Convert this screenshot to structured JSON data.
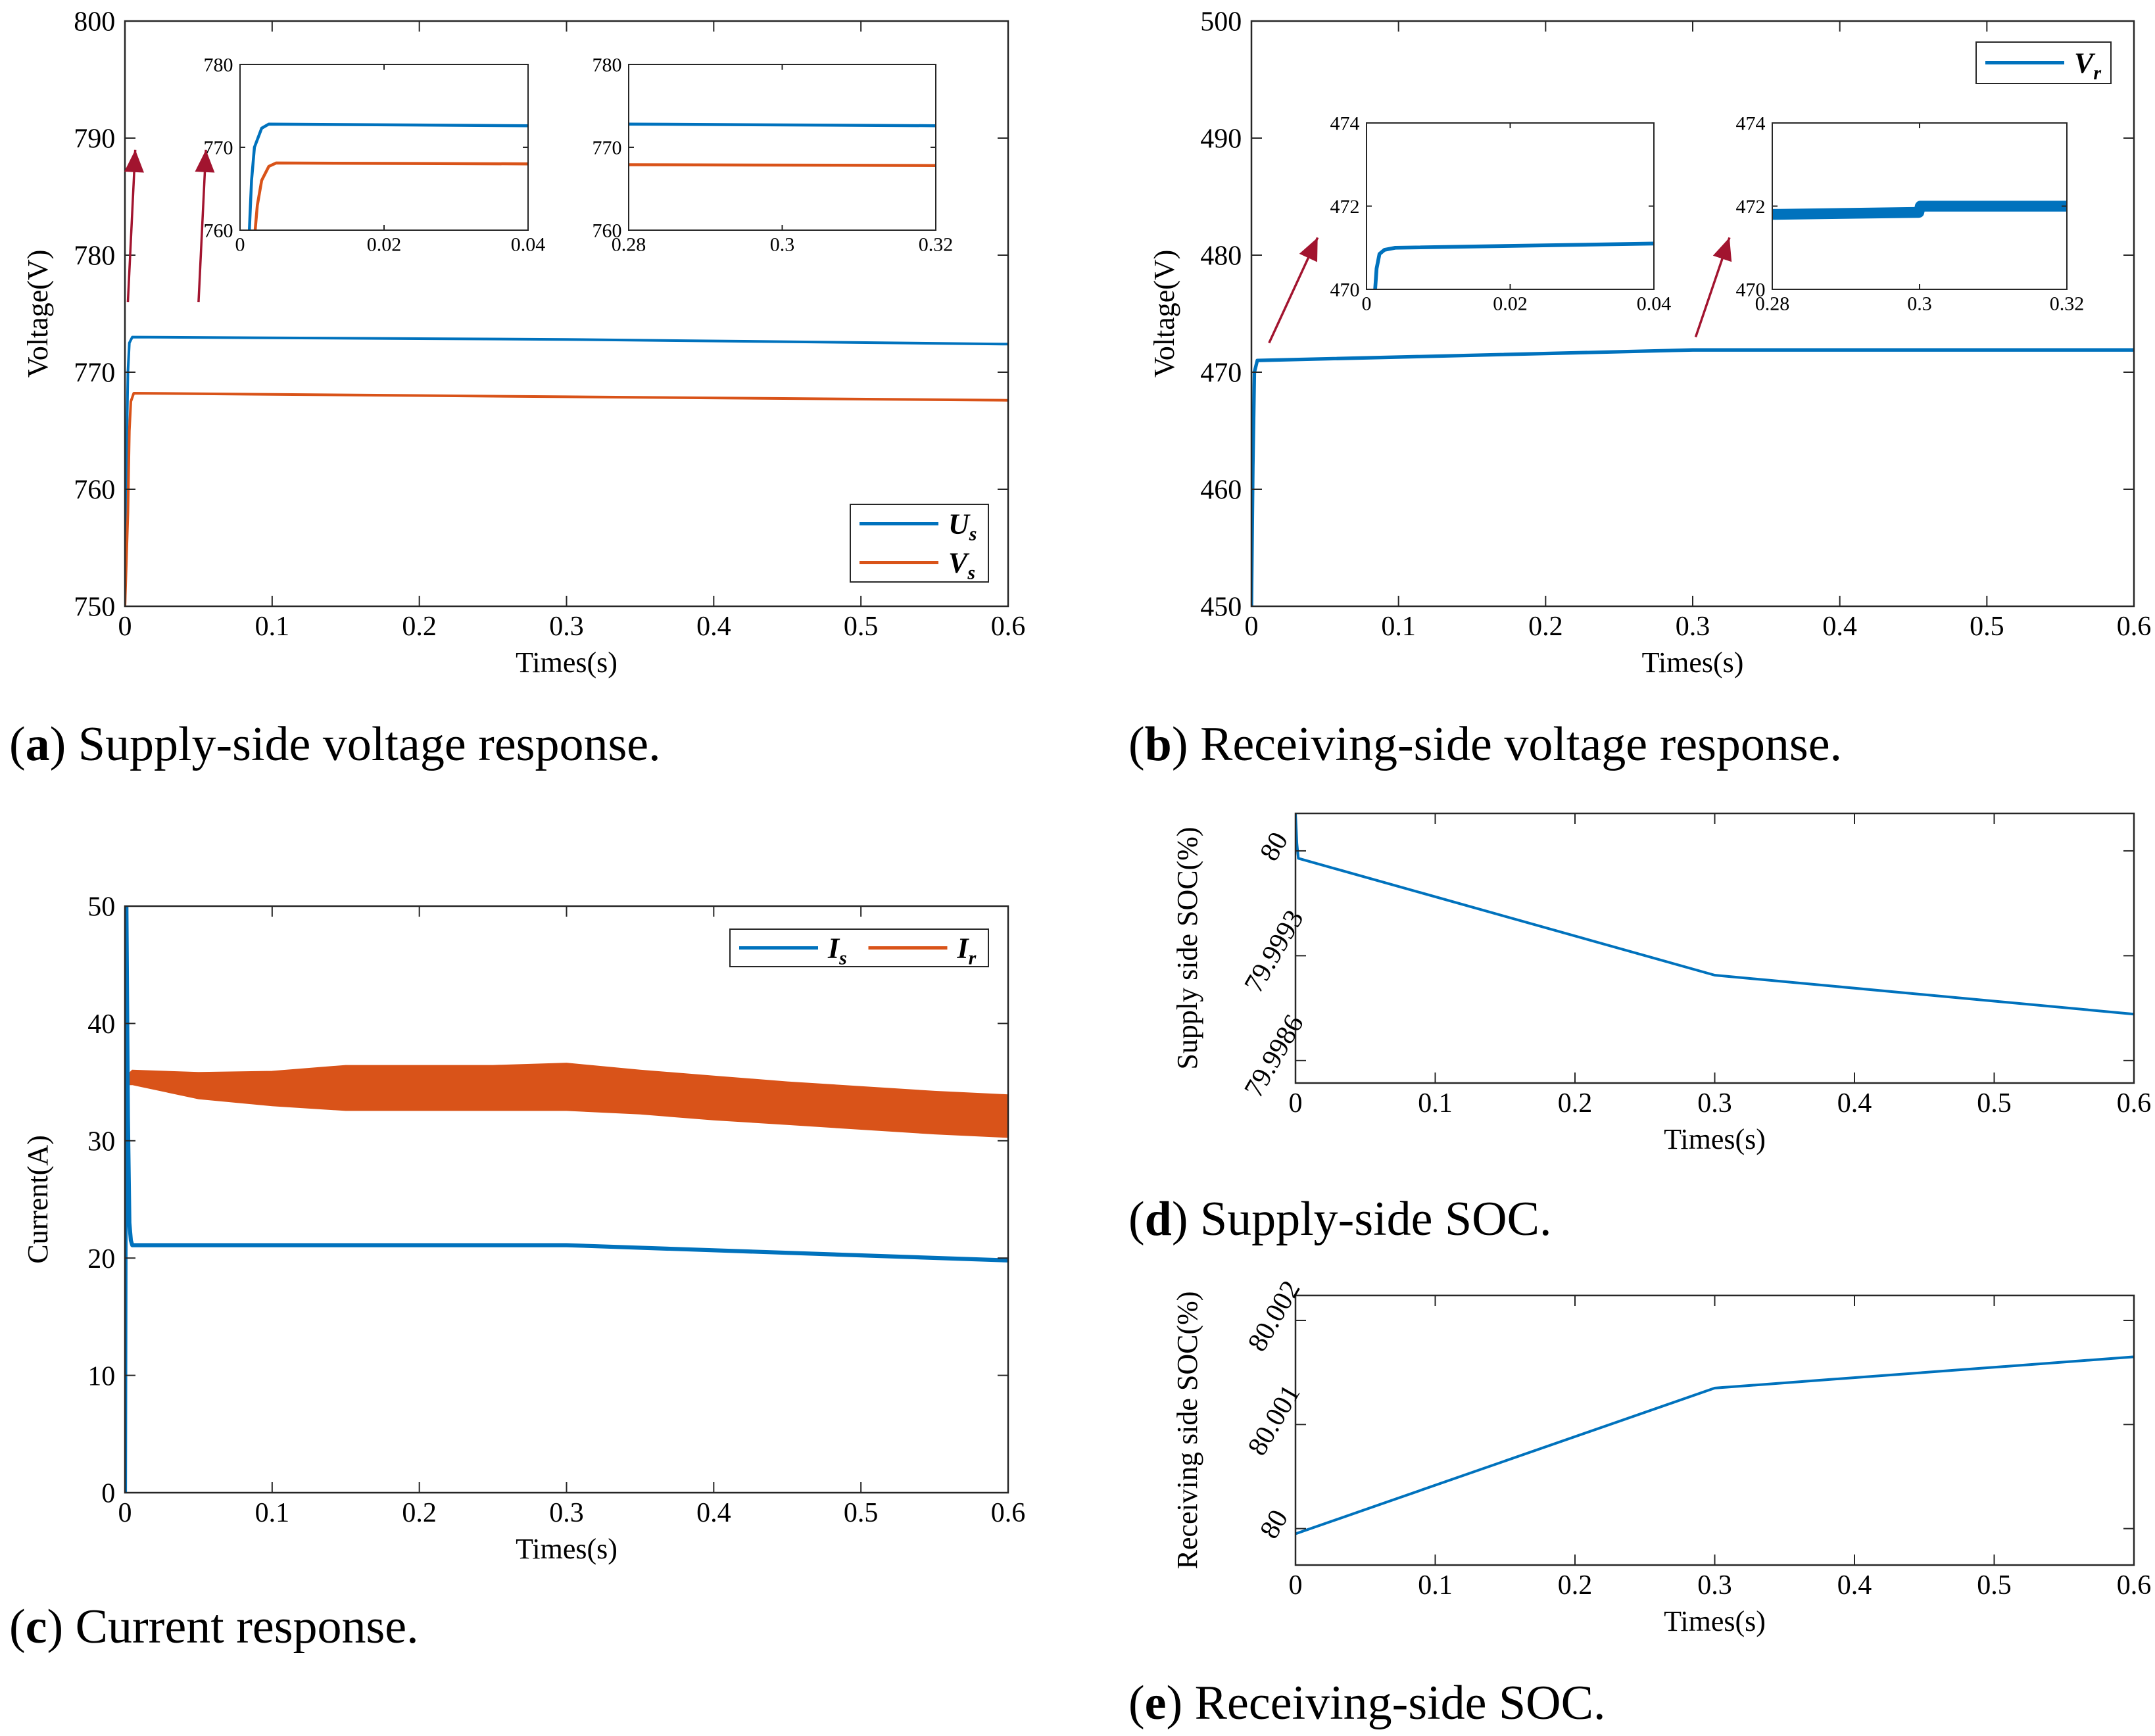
{
  "captions": {
    "a": {
      "letter": "a",
      "text": " Supply-side voltage response."
    },
    "b": {
      "letter": "b",
      "text": " Receiving-side voltage response."
    },
    "c": {
      "letter": "c",
      "text": " Current response."
    },
    "d": {
      "letter": "d",
      "text": " Supply-side SOC."
    },
    "e": {
      "letter": "e",
      "text": " Receiving-side SOC."
    }
  },
  "colors": {
    "blue": "#0072BD",
    "orange": "#D95319",
    "arrow": "#A2142F"
  },
  "chart_data": [
    {
      "id": "a",
      "type": "line",
      "xlabel": "Times(s)",
      "ylabel": "Voltage(V)",
      "xlim": [
        0,
        0.6
      ],
      "ylim": [
        750,
        800
      ],
      "xticks": [
        0,
        0.1,
        0.2,
        0.3,
        0.4,
        0.5,
        0.6
      ],
      "xticklabels": [
        "0",
        "0.1",
        "0.2",
        "0.3",
        "0.4",
        "0.5",
        "0.6"
      ],
      "yticks": [
        750,
        760,
        770,
        780,
        790,
        800
      ],
      "yticklabels": [
        "750",
        "760",
        "770",
        "780",
        "790",
        "800"
      ],
      "legend": {
        "position": "bottom-right",
        "entries": [
          {
            "name": "U",
            "sub": "s",
            "color": "#0072BD"
          },
          {
            "name": "V",
            "sub": "s",
            "color": "#D95319"
          }
        ]
      },
      "series": [
        {
          "name": "Us",
          "color": "#0072BD",
          "band": 0,
          "x": [
            0,
            0.001,
            0.002,
            0.003,
            0.005,
            0.3,
            0.6
          ],
          "y": [
            750,
            762,
            770,
            772.5,
            773,
            772.8,
            772.4
          ]
        },
        {
          "name": "Vs",
          "color": "#D95319",
          "band": 0,
          "x": [
            0,
            0.002,
            0.003,
            0.004,
            0.006,
            0.3,
            0.6
          ],
          "y": [
            750,
            758,
            765,
            767.5,
            768.2,
            767.9,
            767.6
          ]
        }
      ],
      "insets": [
        {
          "xlim": [
            0,
            0.04
          ],
          "ylim": [
            760,
            780
          ],
          "xticks": [
            0,
            0.02,
            0.04
          ],
          "xticklabels": [
            "0",
            "0.02",
            "0.04"
          ],
          "yticks": [
            760,
            770,
            780
          ],
          "yticklabels": [
            "760",
            "770",
            "780"
          ],
          "series": [
            {
              "color": "#0072BD",
              "band": 0,
              "x": [
                0.0013,
                0.0016,
                0.002,
                0.003,
                0.004,
                0.04
              ],
              "y": [
                760,
                766,
                770,
                772.3,
                772.8,
                772.6
              ]
            },
            {
              "color": "#D95319",
              "band": 0.25,
              "x": [
                0.0021,
                0.0024,
                0.003,
                0.004,
                0.005,
                0.04
              ],
              "y": [
                760,
                763,
                766,
                767.7,
                768.1,
                768.0
              ]
            }
          ]
        },
        {
          "xlim": [
            0.28,
            0.32
          ],
          "ylim": [
            760,
            780
          ],
          "xticks": [
            0.28,
            0.3,
            0.32
          ],
          "xticklabels": [
            "0.28",
            "0.3",
            "0.32"
          ],
          "yticks": [
            760,
            770,
            780
          ],
          "yticklabels": [
            "760",
            "770",
            "780"
          ],
          "series": [
            {
              "color": "#0072BD",
              "band": 0,
              "x": [
                0.28,
                0.32
              ],
              "y": [
                772.8,
                772.6
              ]
            },
            {
              "color": "#D95319",
              "band": 0.25,
              "x": [
                0.28,
                0.32
              ],
              "y": [
                767.9,
                767.8
              ]
            }
          ]
        }
      ],
      "arrows": [
        {
          "from": [
            0.002,
            776
          ],
          "to": [
            0.007,
            789
          ]
        },
        {
          "from": [
            0.05,
            776
          ],
          "to": [
            0.055,
            789
          ]
        }
      ]
    },
    {
      "id": "b",
      "type": "line",
      "xlabel": "Times(s)",
      "ylabel": "Voltage(V)",
      "xlim": [
        0,
        0.6
      ],
      "ylim": [
        450,
        500
      ],
      "xticks": [
        0,
        0.1,
        0.2,
        0.3,
        0.4,
        0.5,
        0.6
      ],
      "xticklabels": [
        "0",
        "0.1",
        "0.2",
        "0.3",
        "0.4",
        "0.5",
        "0.6"
      ],
      "yticks": [
        450,
        460,
        470,
        480,
        490,
        500
      ],
      "yticklabels": [
        "450",
        "460",
        "470",
        "480",
        "490",
        "500"
      ],
      "legend": {
        "position": "top-right",
        "entries": [
          {
            "name": "V",
            "sub": "r",
            "color": "#0072BD"
          }
        ]
      },
      "series": [
        {
          "name": "Vr",
          "color": "#0072BD",
          "band": 0.3,
          "x": [
            0,
            0.001,
            0.002,
            0.004,
            0.3,
            0.6
          ],
          "y": [
            450,
            462,
            470,
            471,
            471.9,
            471.9
          ]
        }
      ],
      "insets": [
        {
          "xlim": [
            0,
            0.04
          ],
          "ylim": [
            470,
            474
          ],
          "xticks": [
            0,
            0.02,
            0.04
          ],
          "xticklabels": [
            "0",
            "0.02",
            "0.04"
          ],
          "yticks": [
            470,
            472,
            474
          ],
          "yticklabels": [
            "470",
            "472",
            "474"
          ],
          "series": [
            {
              "color": "#0072BD",
              "band": 0.09,
              "x": [
                0.0012,
                0.0014,
                0.0018,
                0.0025,
                0.004,
                0.04
              ],
              "y": [
                470,
                470.5,
                470.85,
                470.95,
                471.0,
                471.1
              ]
            }
          ]
        },
        {
          "xlim": [
            0.28,
            0.32
          ],
          "ylim": [
            470,
            474
          ],
          "xticks": [
            0.28,
            0.3,
            0.32
          ],
          "xticklabels": [
            "0.28",
            "0.3",
            "0.32"
          ],
          "yticks": [
            470,
            472,
            474
          ],
          "yticklabels": [
            "470",
            "472",
            "474"
          ],
          "series": [
            {
              "color": "#0072BD",
              "band": 0.26,
              "x": [
                0.28,
                0.2999,
                0.3001,
                0.32
              ],
              "y": [
                471.8,
                471.85,
                472.0,
                472.0
              ]
            }
          ]
        }
      ],
      "arrows": [
        {
          "from": [
            0.012,
            472.5
          ],
          "to": [
            0.045,
            481.5
          ]
        },
        {
          "from": [
            0.302,
            473
          ],
          "to": [
            0.325,
            481.5
          ]
        }
      ]
    },
    {
      "id": "c",
      "type": "line",
      "xlabel": "Times(s)",
      "ylabel": "Current(A)",
      "xlim": [
        0,
        0.6
      ],
      "ylim": [
        0,
        50
      ],
      "xticks": [
        0,
        0.1,
        0.2,
        0.3,
        0.4,
        0.5,
        0.6
      ],
      "xticklabels": [
        "0",
        "0.1",
        "0.2",
        "0.3",
        "0.4",
        "0.5",
        "0.6"
      ],
      "yticks": [
        0,
        10,
        20,
        30,
        40,
        50
      ],
      "yticklabels": [
        "0",
        "10",
        "20",
        "30",
        "40",
        "50"
      ],
      "legend": {
        "position": "top-right",
        "entries": [
          {
            "name": "I",
            "sub": "s",
            "color": "#0072BD"
          },
          {
            "name": "I",
            "sub": "r",
            "color": "#D95319"
          }
        ]
      },
      "series": [
        {
          "name": "Ir",
          "color": "#D95319",
          "bandSeries": true,
          "x": [
            0.001,
            0.005,
            0.05,
            0.1,
            0.15,
            0.2,
            0.25,
            0.3,
            0.35,
            0.4,
            0.45,
            0.5,
            0.55,
            0.6
          ],
          "upper": [
            35.5,
            36.0,
            35.8,
            35.9,
            36.4,
            36.4,
            36.4,
            36.6,
            36.0,
            35.5,
            35.0,
            34.6,
            34.2,
            33.9
          ],
          "lower": [
            34.8,
            34.8,
            33.6,
            33.0,
            32.6,
            32.6,
            32.6,
            32.6,
            32.3,
            31.8,
            31.4,
            31.0,
            30.6,
            30.3
          ]
        },
        {
          "name": "Is",
          "color": "#0072BD",
          "band": 0.35,
          "x": [
            0,
            0.0005,
            0.001,
            0.002,
            0.003,
            0.004,
            0.005,
            0.3,
            0.6
          ],
          "y": [
            0,
            27,
            50,
            32,
            23,
            21.5,
            21.1,
            21.1,
            19.8
          ]
        }
      ],
      "insets": [],
      "arrows": []
    },
    {
      "id": "d",
      "type": "line",
      "xlabel": "Times(s)",
      "ylabel": "Supply side SOC(%)",
      "xlim": [
        0,
        0.6
      ],
      "ylim": [
        79.99845,
        80.00025
      ],
      "xticks": [
        0,
        0.1,
        0.2,
        0.3,
        0.4,
        0.5,
        0.6
      ],
      "xticklabels": [
        "0",
        "0.1",
        "0.2",
        "0.3",
        "0.4",
        "0.5",
        "0.6"
      ],
      "yticks": [
        79.9986,
        79.9993,
        80.0
      ],
      "yticklabels": [
        "79.9986",
        "79.9993",
        "80"
      ],
      "ytickrotate": true,
      "series": [
        {
          "name": "SOC_s",
          "color": "#0072BD",
          "band": 0,
          "x": [
            0,
            0.001,
            0.002,
            0.3,
            0.6
          ],
          "y": [
            80.00025,
            80.00005,
            79.99995,
            79.99917,
            79.99891
          ]
        }
      ],
      "insets": [],
      "arrows": []
    },
    {
      "id": "e",
      "type": "line",
      "xlabel": "Times(s)",
      "ylabel": "Receiving side SOC(%)",
      "xlim": [
        0,
        0.6
      ],
      "ylim": [
        79.99965,
        80.00224
      ],
      "xticks": [
        0,
        0.1,
        0.2,
        0.3,
        0.4,
        0.5,
        0.6
      ],
      "xticklabels": [
        "0",
        "0.1",
        "0.2",
        "0.3",
        "0.4",
        "0.5",
        "0.6"
      ],
      "yticks": [
        80.0,
        80.001,
        80.002
      ],
      "yticklabels": [
        "80",
        "80.001",
        "80.002"
      ],
      "ytickrotate": true,
      "series": [
        {
          "name": "SOC_r",
          "color": "#0072BD",
          "band": 0,
          "x": [
            0,
            0.3,
            0.6
          ],
          "y": [
            79.99995,
            80.00135,
            80.00165
          ]
        }
      ],
      "insets": [],
      "arrows": []
    }
  ]
}
